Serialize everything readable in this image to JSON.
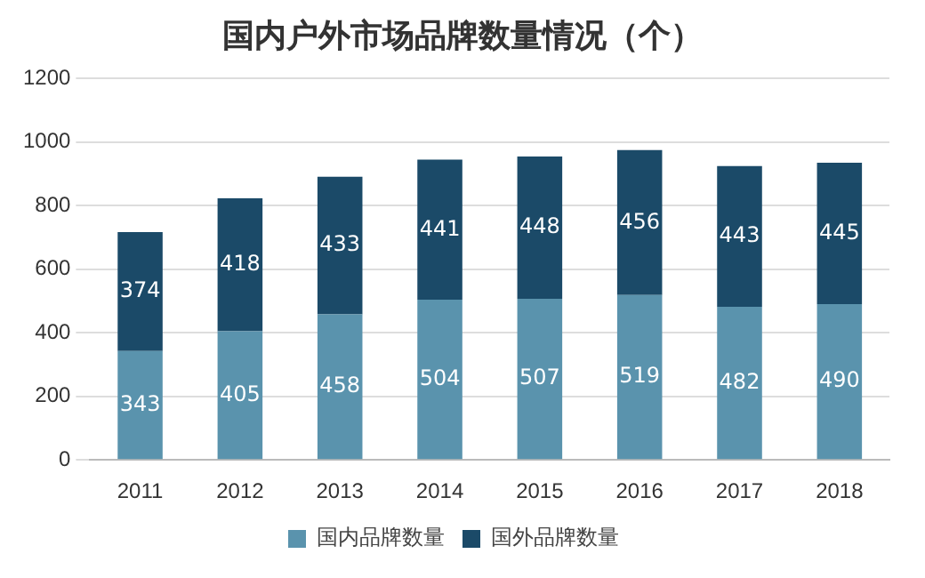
{
  "chart_data": {
    "type": "bar",
    "title": "国内户外市场品牌数量情况（个）",
    "stacked": true,
    "categories": [
      "2011",
      "2012",
      "2013",
      "2014",
      "2015",
      "2016",
      "2017",
      "2018"
    ],
    "series": [
      {
        "name": "国内品牌数量",
        "color": "#5a93ad",
        "values": [
          343,
          405,
          458,
          504,
          507,
          519,
          482,
          490
        ]
      },
      {
        "name": "国外品牌数量",
        "color": "#1b4a68",
        "values": [
          374,
          418,
          433,
          441,
          448,
          456,
          443,
          445
        ]
      }
    ],
    "ylim": [
      0,
      1200
    ],
    "yticks": [
      0,
      200,
      400,
      600,
      800,
      1000,
      1200
    ],
    "grid": "y",
    "legend": "bottom",
    "data_labels": true
  }
}
